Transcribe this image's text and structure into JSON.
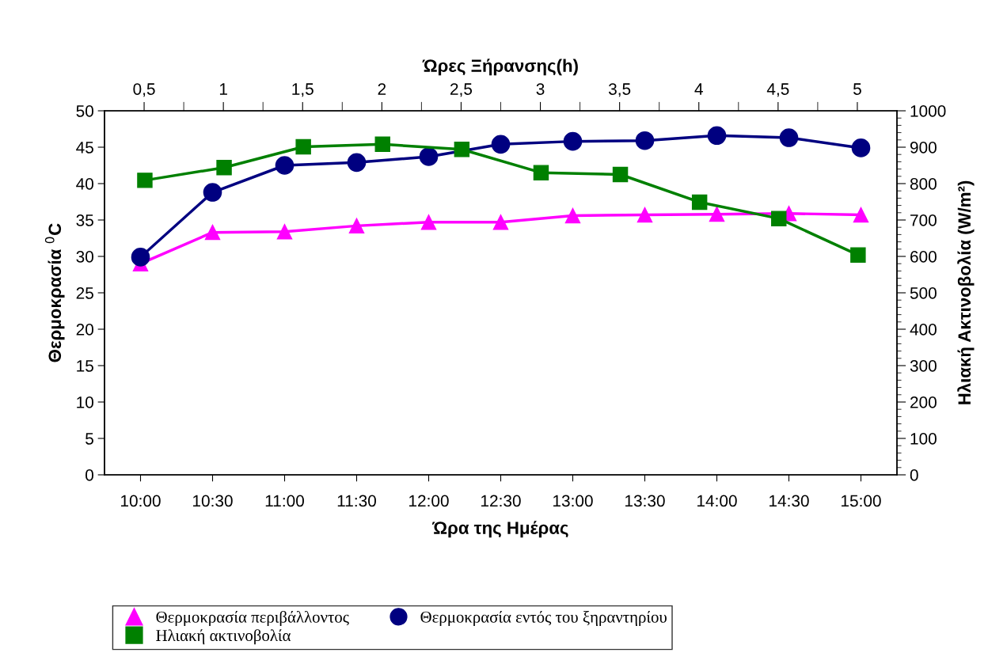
{
  "chart_data": {
    "type": "line",
    "xlabel": "Ώρα της Ημέρας",
    "x2label": "Ώρες Ξήρανσης(h)",
    "ylabel": "Θερμοκρασία $^{0}$C",
    "y2label": "Ηλιακή Ακτινοβολία (W/m²)",
    "x": [
      10,
      10.5,
      11,
      11.5,
      12,
      12.5,
      13,
      13.5,
      14,
      14.5,
      15
    ],
    "xlim": [
      9.75,
      15.25
    ],
    "xticks": [
      {
        "value": 10,
        "label": "10:00"
      },
      {
        "value": 10.5,
        "label": "10:30"
      },
      {
        "value": 11,
        "label": "11:00"
      },
      {
        "value": 11.5,
        "label": "11:30"
      },
      {
        "value": 12,
        "label": "12:00"
      },
      {
        "value": 12.5,
        "label": "12:30"
      },
      {
        "value": 13,
        "label": "13:00"
      },
      {
        "value": 13.5,
        "label": "13:30"
      },
      {
        "value": 14,
        "label": "14:00"
      },
      {
        "value": 14.5,
        "label": "14:30"
      },
      {
        "value": 15,
        "label": "15:00"
      }
    ],
    "series": [
      {
        "name": "Θερμοκρασία περιβάλλοντος",
        "color": "#ff00ff",
        "marker": "triangle",
        "values": [
          29.0,
          33.3,
          33.4,
          34.2,
          34.7,
          34.7,
          35.6,
          35.7,
          35.8,
          35.9,
          35.7
        ]
      },
      {
        "name": "Θερμοκρασία εντός του ξηραντηρίου",
        "color": "#000080",
        "marker": "circle",
        "values": [
          29.9,
          38.8,
          42.5,
          42.9,
          43.7,
          45.4,
          45.8,
          45.9,
          46.6,
          46.3,
          44.9
        ]
      },
      {
        "name": "Ηλιακή ακτινοβολία",
        "color": "#008000",
        "marker": "square",
        "axis": "y2",
        "x": [
          10.03,
          10.58,
          11.13,
          11.68,
          12.23,
          12.78,
          13.33,
          13.88,
          14.43,
          14.98
        ],
        "values": [
          809,
          844,
          901,
          908,
          894,
          830,
          825,
          749,
          704,
          604
        ]
      }
    ],
    "ylim": [
      0,
      50
    ],
    "yticks": [
      0,
      5,
      10,
      15,
      20,
      25,
      30,
      35,
      40,
      45,
      50
    ],
    "y2lim": [
      0,
      1000
    ],
    "y2ticks": [
      0,
      {
        "value": 20,
        "label": null
      },
      {
        "value": 40,
        "label": null
      },
      {
        "value": 60,
        "label": null
      },
      {
        "value": 80,
        "label": null
      },
      100,
      {
        "value": 120,
        "label": null
      },
      {
        "value": 140,
        "label": null
      },
      {
        "value": 160,
        "label": null
      },
      {
        "value": 180,
        "label": null
      },
      200,
      {
        "value": 220,
        "label": null
      },
      {
        "value": 240,
        "label": null
      },
      {
        "value": 260,
        "label": null
      },
      {
        "value": 280,
        "label": null
      },
      300,
      {
        "value": 320,
        "label": null
      },
      {
        "value": 340,
        "label": null
      },
      {
        "value": 360,
        "label": null
      },
      {
        "value": 380,
        "label": null
      },
      400,
      {
        "value": 420,
        "label": null
      },
      {
        "value": 440,
        "label": null
      },
      {
        "value": 460,
        "label": null
      },
      {
        "value": 480,
        "label": null
      },
      500,
      {
        "value": 520,
        "label": null
      },
      {
        "value": 540,
        "label": null
      },
      {
        "value": 560,
        "label": null
      },
      {
        "value": 580,
        "label": null
      },
      600,
      {
        "value": 620,
        "label": null
      },
      {
        "value": 640,
        "label": null
      },
      {
        "value": 660,
        "label": null
      },
      {
        "value": 680,
        "label": null
      },
      700,
      {
        "value": 720,
        "label": null
      },
      {
        "value": 740,
        "label": null
      },
      {
        "value": 760,
        "label": null
      },
      {
        "value": 780,
        "label": null
      },
      800,
      {
        "value": 820,
        "label": null
      },
      {
        "value": 840,
        "label": null
      },
      {
        "value": 860,
        "label": null
      },
      {
        "value": 880,
        "label": null
      },
      900,
      {
        "value": 920,
        "label": null
      },
      {
        "value": 940,
        "label": null
      },
      {
        "value": 960,
        "label": null
      },
      {
        "value": 980,
        "label": null
      },
      1000
    ],
    "x2lim": [
      0.25,
      5.25
    ],
    "x2ticks": [
      {
        "value": 0.5,
        "label": "0,5"
      },
      {
        "value": 0.75,
        "label": null
      },
      {
        "value": 1,
        "label": "1"
      },
      {
        "value": 1.25,
        "label": null
      },
      {
        "value": 1.5,
        "label": "1,5"
      },
      {
        "value": 1.75,
        "label": null
      },
      {
        "value": 2,
        "label": "2"
      },
      {
        "value": 2.25,
        "label": null
      },
      {
        "value": 2.5,
        "label": "2,5"
      },
      {
        "value": 2.75,
        "label": null
      },
      {
        "value": 3,
        "label": "3"
      },
      {
        "value": 3.25,
        "label": null
      },
      {
        "value": 3.5,
        "label": "3,5"
      },
      {
        "value": 3.75,
        "label": null
      },
      {
        "value": 4,
        "label": "4"
      },
      {
        "value": 4.25,
        "label": null
      },
      {
        "value": 4.5,
        "label": "4,5"
      },
      {
        "value": 4.75,
        "label": null
      },
      {
        "value": 5,
        "label": "5"
      }
    ],
    "grid": false,
    "legend": "bottom",
    "line_style": "solid"
  }
}
